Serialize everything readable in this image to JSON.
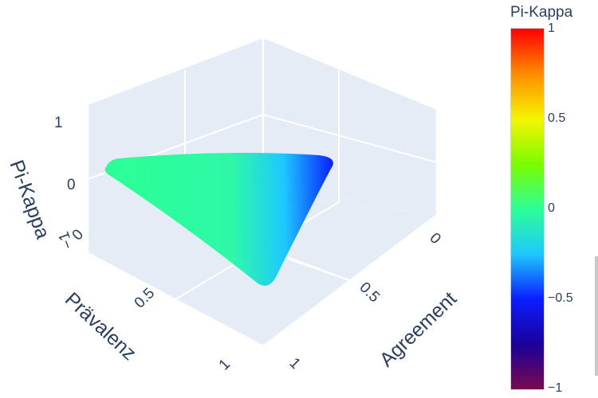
{
  "chart_data": {
    "type": "surface3d",
    "axes": {
      "x": {
        "title": "Agreement",
        "ticks": [
          "0",
          "0.5",
          "1"
        ]
      },
      "y": {
        "title": "Prävalenz",
        "ticks": [
          "0",
          "0.5",
          "1"
        ]
      },
      "z": {
        "title": "Pi-Kappa",
        "ticks": [
          "−1",
          "0",
          "1"
        ]
      }
    },
    "surface": {
      "description": "Triangular surface with near-constant color at Pi-Kappa ≈ 0, blending to blue (≈ −0.9) toward the agreement = 0 corner",
      "vertices": [
        {
          "agreement": 1,
          "praevalenz": 0,
          "pi_kappa": 0
        },
        {
          "agreement": 1,
          "praevalenz": 1,
          "pi_kappa": 0
        },
        {
          "agreement": 0,
          "praevalenz": 0.5,
          "pi_kappa": -0.9
        }
      ]
    },
    "colorbar": {
      "title": "Pi-Kappa",
      "colorscale": "rainbow",
      "range": [
        -1,
        1
      ],
      "ticks": [
        "1",
        "0.5",
        "0",
        "−0.5",
        "−1"
      ],
      "colors": [
        "#ff0000",
        "#ff8c00",
        "#f5f500",
        "#7cfc00",
        "#2cff96",
        "#1ec8ff",
        "#0a1eff",
        "#1a0099",
        "#7a0a4f"
      ]
    }
  }
}
